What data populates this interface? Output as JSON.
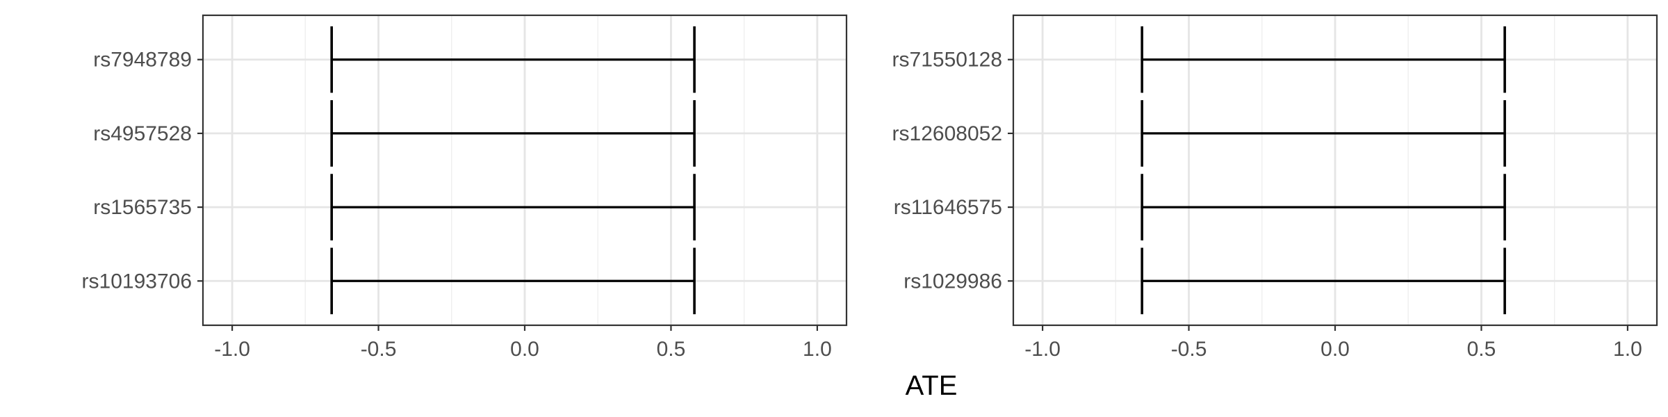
{
  "figure": {
    "xlabel": "ATE"
  },
  "chart_data": [
    {
      "type": "errorbar",
      "categories": [
        "rs7948789",
        "rs4957528",
        "rs1565735",
        "rs10193706"
      ],
      "intervals": [
        {
          "lower": -0.66,
          "upper": 0.58
        },
        {
          "lower": -0.66,
          "upper": 0.58
        },
        {
          "lower": -0.66,
          "upper": 0.58
        },
        {
          "lower": -0.66,
          "upper": 0.58
        }
      ],
      "xlim": [
        -1.1,
        1.1
      ],
      "xticks": [
        "-1.0",
        "-0.5",
        "0.0",
        "0.5",
        "1.0"
      ],
      "xtick_values": [
        -1.0,
        -0.5,
        0.0,
        0.5,
        1.0
      ],
      "grid": true
    },
    {
      "type": "errorbar",
      "categories": [
        "rs71550128",
        "rs12608052",
        "rs11646575",
        "rs1029986"
      ],
      "intervals": [
        {
          "lower": -0.66,
          "upper": 0.58
        },
        {
          "lower": -0.66,
          "upper": 0.58
        },
        {
          "lower": -0.66,
          "upper": 0.58
        },
        {
          "lower": -0.66,
          "upper": 0.58
        }
      ],
      "xlim": [
        -1.1,
        1.1
      ],
      "xticks": [
        "-1.0",
        "-0.5",
        "0.0",
        "0.5",
        "1.0"
      ],
      "xtick_values": [
        -1.0,
        -0.5,
        0.0,
        0.5,
        1.0
      ],
      "grid": true
    }
  ],
  "colors": {
    "grid_major": "#e5e5e5",
    "grid_minor": "#efefef",
    "frame": "#333333",
    "bar": "#000000",
    "tick_text": "#4d4d4d",
    "background": "#ffffff"
  }
}
